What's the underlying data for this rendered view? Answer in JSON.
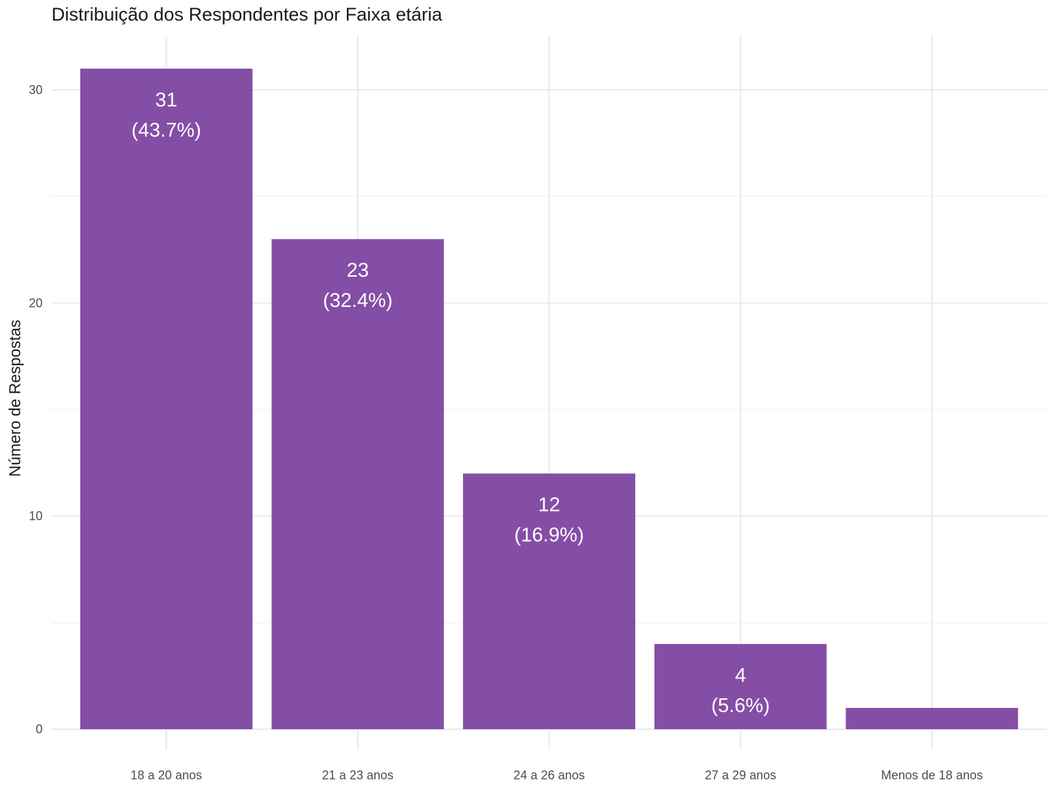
{
  "chart_data": {
    "type": "bar",
    "title": "Distribuição dos Respondentes por Faixa etária",
    "xlabel": "",
    "ylabel": "Número de Respostas",
    "categories": [
      "18 a 20 anos",
      "21 a 23 anos",
      "24 a 26 anos",
      "27 a 29 anos",
      "Menos de 18 anos"
    ],
    "values": [
      31,
      23,
      12,
      4,
      1
    ],
    "labels": [
      {
        "count": "31",
        "percent": "(43.7%)"
      },
      {
        "count": "23",
        "percent": "(32.4%)"
      },
      {
        "count": "12",
        "percent": "(16.9%)"
      },
      {
        "count": "4",
        "percent": "(5.6%)"
      },
      {
        "count": "",
        "percent": ""
      }
    ],
    "yticks": [
      0,
      10,
      20,
      30
    ],
    "ylim": [
      0,
      32
    ],
    "grid": true,
    "bar_color": "#7b3f9e"
  }
}
